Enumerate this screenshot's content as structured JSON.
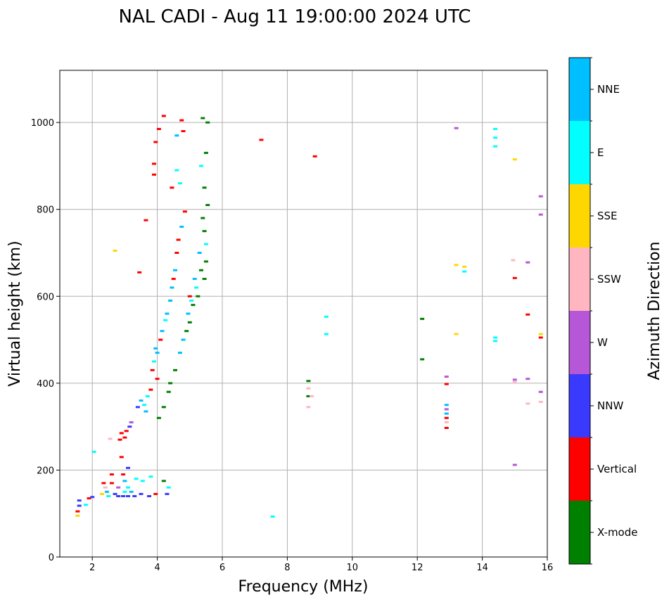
{
  "chart_data": {
    "type": "scatter",
    "title": "NAL CADI - Aug 11 19:00:00 2024 UTC",
    "xlabel": "Frequency (MHz)",
    "ylabel": "Virtual height (km)",
    "xlim": [
      1,
      16
    ],
    "ylim": [
      0,
      1120
    ],
    "xticks": [
      2,
      4,
      6,
      8,
      10,
      12,
      14,
      16
    ],
    "yticks": [
      0,
      200,
      400,
      600,
      800,
      1000
    ],
    "grid": true,
    "colorbar": {
      "title": "Azimuth Direction",
      "categories": [
        {
          "name": "X-mode",
          "color": "#008000"
        },
        {
          "name": "Vertical",
          "color": "#ff0000"
        },
        {
          "name": "NNW",
          "color": "#3a3aff"
        },
        {
          "name": "W",
          "color": "#b557d6"
        },
        {
          "name": "SSW",
          "color": "#ffb6c1"
        },
        {
          "name": "SSE",
          "color": "#ffd700"
        },
        {
          "name": "E",
          "color": "#00ffff"
        },
        {
          "name": "NNE",
          "color": "#00bfff"
        }
      ]
    },
    "points": [
      [
        1.55,
        95,
        "SSE"
      ],
      [
        1.55,
        105,
        "Vertical"
      ],
      [
        1.6,
        118,
        "NNW"
      ],
      [
        1.6,
        130,
        "NNW"
      ],
      [
        1.8,
        120,
        "E"
      ],
      [
        1.9,
        135,
        "Vertical"
      ],
      [
        2.0,
        138,
        "NNW"
      ],
      [
        2.05,
        242,
        "E"
      ],
      [
        2.3,
        145,
        "SSE"
      ],
      [
        2.35,
        170,
        "Vertical"
      ],
      [
        2.4,
        160,
        "SSW"
      ],
      [
        2.45,
        150,
        "NNE"
      ],
      [
        2.5,
        140,
        "E"
      ],
      [
        2.55,
        272,
        "SSW"
      ],
      [
        2.6,
        170,
        "Vertical"
      ],
      [
        2.6,
        190,
        "Vertical"
      ],
      [
        2.7,
        145,
        "NNW"
      ],
      [
        2.7,
        705,
        "SSE"
      ],
      [
        2.8,
        140,
        "NNW"
      ],
      [
        2.8,
        160,
        "W"
      ],
      [
        2.85,
        270,
        "Vertical"
      ],
      [
        2.9,
        285,
        "Vertical"
      ],
      [
        2.9,
        230,
        "Vertical"
      ],
      [
        2.95,
        140,
        "NNW"
      ],
      [
        2.95,
        190,
        "Vertical"
      ],
      [
        3.0,
        275,
        "Vertical"
      ],
      [
        3.0,
        150,
        "E"
      ],
      [
        3.0,
        175,
        "NNE"
      ],
      [
        3.05,
        290,
        "Vertical"
      ],
      [
        3.1,
        160,
        "E"
      ],
      [
        3.1,
        140,
        "NNW"
      ],
      [
        3.1,
        205,
        "NNW"
      ],
      [
        3.15,
        300,
        "NNW"
      ],
      [
        3.2,
        310,
        "W"
      ],
      [
        3.2,
        150,
        "NNE"
      ],
      [
        3.3,
        140,
        "NNW"
      ],
      [
        3.35,
        180,
        "E"
      ],
      [
        3.4,
        345,
        "NNW"
      ],
      [
        3.45,
        655,
        "Vertical"
      ],
      [
        3.5,
        360,
        "NNE"
      ],
      [
        3.5,
        145,
        "NNW"
      ],
      [
        3.55,
        175,
        "E"
      ],
      [
        3.6,
        350,
        "E"
      ],
      [
        3.65,
        335,
        "NNE"
      ],
      [
        3.65,
        775,
        "Vertical"
      ],
      [
        3.7,
        370,
        "E"
      ],
      [
        3.75,
        140,
        "NNW"
      ],
      [
        3.8,
        385,
        "Vertical"
      ],
      [
        3.8,
        185,
        "E"
      ],
      [
        3.85,
        430,
        "Vertical"
      ],
      [
        3.9,
        880,
        "Vertical"
      ],
      [
        3.9,
        905,
        "Vertical"
      ],
      [
        3.9,
        450,
        "E"
      ],
      [
        3.95,
        480,
        "NNE"
      ],
      [
        3.95,
        145,
        "Vertical"
      ],
      [
        3.95,
        955,
        "Vertical"
      ],
      [
        4.0,
        410,
        "Vertical"
      ],
      [
        4.0,
        470,
        "NNE"
      ],
      [
        4.05,
        985,
        "Vertical"
      ],
      [
        4.05,
        320,
        "X-mode"
      ],
      [
        4.1,
        500,
        "Vertical"
      ],
      [
        4.15,
        520,
        "NNE"
      ],
      [
        4.2,
        345,
        "X-mode"
      ],
      [
        4.2,
        175,
        "X-mode"
      ],
      [
        4.2,
        1015,
        "Vertical"
      ],
      [
        4.25,
        545,
        "E"
      ],
      [
        4.3,
        560,
        "NNE"
      ],
      [
        4.3,
        145,
        "NNW"
      ],
      [
        4.35,
        160,
        "E"
      ],
      [
        4.35,
        380,
        "X-mode"
      ],
      [
        4.4,
        590,
        "NNE"
      ],
      [
        4.4,
        400,
        "X-mode"
      ],
      [
        4.45,
        620,
        "NNE"
      ],
      [
        4.45,
        850,
        "Vertical"
      ],
      [
        4.5,
        640,
        "Vertical"
      ],
      [
        4.55,
        660,
        "NNE"
      ],
      [
        4.55,
        430,
        "X-mode"
      ],
      [
        4.6,
        890,
        "E"
      ],
      [
        4.6,
        700,
        "Vertical"
      ],
      [
        4.6,
        970,
        "NNE"
      ],
      [
        4.65,
        730,
        "Vertical"
      ],
      [
        4.7,
        470,
        "NNE"
      ],
      [
        4.7,
        860,
        "E"
      ],
      [
        4.75,
        1005,
        "Vertical"
      ],
      [
        4.75,
        760,
        "NNE"
      ],
      [
        4.8,
        500,
        "NNE"
      ],
      [
        4.8,
        980,
        "Vertical"
      ],
      [
        4.85,
        795,
        "Vertical"
      ],
      [
        4.9,
        520,
        "X-mode"
      ],
      [
        4.95,
        560,
        "NNE"
      ],
      [
        5.0,
        540,
        "X-mode"
      ],
      [
        5.0,
        600,
        "Vertical"
      ],
      [
        5.05,
        590,
        "E"
      ],
      [
        5.1,
        580,
        "X-mode"
      ],
      [
        5.15,
        640,
        "NNE"
      ],
      [
        5.2,
        620,
        "E"
      ],
      [
        5.25,
        600,
        "X-mode"
      ],
      [
        5.3,
        700,
        "NNE"
      ],
      [
        5.35,
        660,
        "X-mode"
      ],
      [
        5.35,
        900,
        "E"
      ],
      [
        5.4,
        780,
        "X-mode"
      ],
      [
        5.4,
        1010,
        "X-mode"
      ],
      [
        5.45,
        850,
        "X-mode"
      ],
      [
        5.45,
        750,
        "X-mode"
      ],
      [
        5.5,
        720,
        "E"
      ],
      [
        5.5,
        930,
        "X-mode"
      ],
      [
        5.55,
        810,
        "X-mode"
      ],
      [
        5.55,
        1000,
        "X-mode"
      ],
      [
        5.5,
        680,
        "X-mode"
      ],
      [
        5.45,
        640,
        "X-mode"
      ],
      [
        7.2,
        960,
        "Vertical"
      ],
      [
        7.55,
        93,
        "E"
      ],
      [
        8.65,
        405,
        "X-mode"
      ],
      [
        8.65,
        388,
        "SSW"
      ],
      [
        8.65,
        370,
        "X-mode"
      ],
      [
        8.65,
        345,
        "SSW"
      ],
      [
        8.75,
        370,
        "SSW"
      ],
      [
        8.85,
        922,
        "Vertical"
      ],
      [
        9.2,
        553,
        "E"
      ],
      [
        9.2,
        513,
        "E"
      ],
      [
        12.15,
        548,
        "X-mode"
      ],
      [
        12.15,
        455,
        "X-mode"
      ],
      [
        12.9,
        415,
        "W"
      ],
      [
        12.9,
        398,
        "Vertical"
      ],
      [
        12.9,
        350,
        "NNE"
      ],
      [
        12.9,
        340,
        "W"
      ],
      [
        12.9,
        330,
        "NNE"
      ],
      [
        12.9,
        320,
        "Vertical"
      ],
      [
        12.9,
        310,
        "SSW"
      ],
      [
        12.9,
        297,
        "Vertical"
      ],
      [
        13.2,
        987,
        "W"
      ],
      [
        13.2,
        672,
        "SSE"
      ],
      [
        13.2,
        513,
        "SSE"
      ],
      [
        13.45,
        668,
        "SSE"
      ],
      [
        13.45,
        657,
        "E"
      ],
      [
        14.4,
        985,
        "E"
      ],
      [
        14.4,
        965,
        "E"
      ],
      [
        14.4,
        945,
        "E"
      ],
      [
        14.4,
        505,
        "E"
      ],
      [
        14.4,
        497,
        "E"
      ],
      [
        15.0,
        915,
        "SSE"
      ],
      [
        14.95,
        683,
        "SSW"
      ],
      [
        15.0,
        642,
        "Vertical"
      ],
      [
        15.0,
        408,
        "W"
      ],
      [
        15.0,
        402,
        "SSW"
      ],
      [
        15.0,
        212,
        "W"
      ],
      [
        15.4,
        678,
        "W"
      ],
      [
        15.4,
        558,
        "Vertical"
      ],
      [
        15.4,
        410,
        "W"
      ],
      [
        15.4,
        353,
        "SSW"
      ],
      [
        15.8,
        830,
        "W"
      ],
      [
        15.8,
        788,
        "W"
      ],
      [
        15.8,
        513,
        "SSE"
      ],
      [
        15.8,
        505,
        "Vertical"
      ],
      [
        15.8,
        380,
        "W"
      ],
      [
        15.8,
        357,
        "SSW"
      ]
    ]
  }
}
